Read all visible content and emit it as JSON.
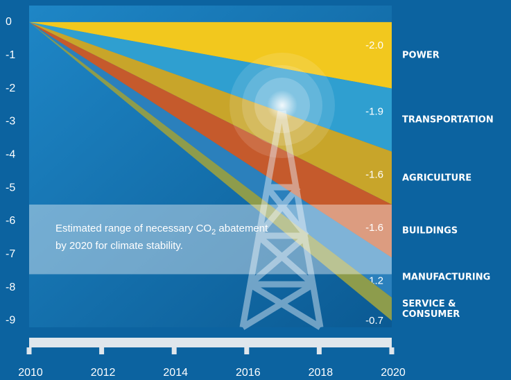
{
  "chart_data": {
    "type": "stacked_area",
    "xlim": [
      2010,
      2020
    ],
    "xticks": [
      2010,
      2012,
      2014,
      2016,
      2018,
      2020
    ],
    "ylim": [
      0.5,
      -9.2
    ],
    "yticks": [
      0,
      -1,
      -2,
      -3,
      -4,
      -5,
      -6,
      -7,
      -8,
      -9
    ],
    "x": [
      2010,
      2020
    ],
    "series": [
      {
        "name": "POWER",
        "color": "#f2c81e",
        "values": [
          0,
          -2.0
        ],
        "value_labels": [
          null,
          "-2.0"
        ]
      },
      {
        "name": "TRANSPORTATION",
        "color": "#2f9fd0",
        "values": [
          0,
          -1.9
        ],
        "value_labels": [
          null,
          "-1.9"
        ]
      },
      {
        "name": "AGRICULTURE",
        "color": "#c8a52a",
        "values": [
          0,
          -1.6
        ],
        "value_labels": [
          null,
          "-1.6"
        ]
      },
      {
        "name": "BUILDINGS",
        "color": "#c55a2c",
        "values": [
          0,
          -1.6
        ],
        "value_labels": [
          null,
          "-1.6"
        ]
      },
      {
        "name": "MANUFACTURING",
        "color": "#2b80bc",
        "values": [
          0,
          -1.2
        ],
        "value_labels": [
          null,
          "-1.2"
        ]
      },
      {
        "name": "SERVICE &\nCONSUMER",
        "color": "#8d9c4c",
        "values": [
          0,
          -0.7
        ],
        "value_labels": [
          null,
          "-0.7"
        ]
      }
    ],
    "annotation": {
      "text": [
        "Estimated  range of necessary CO",
        "2",
        " abatement",
        "by 2020 for climate stability."
      ],
      "range": [
        -5.5,
        -7.6
      ]
    }
  }
}
